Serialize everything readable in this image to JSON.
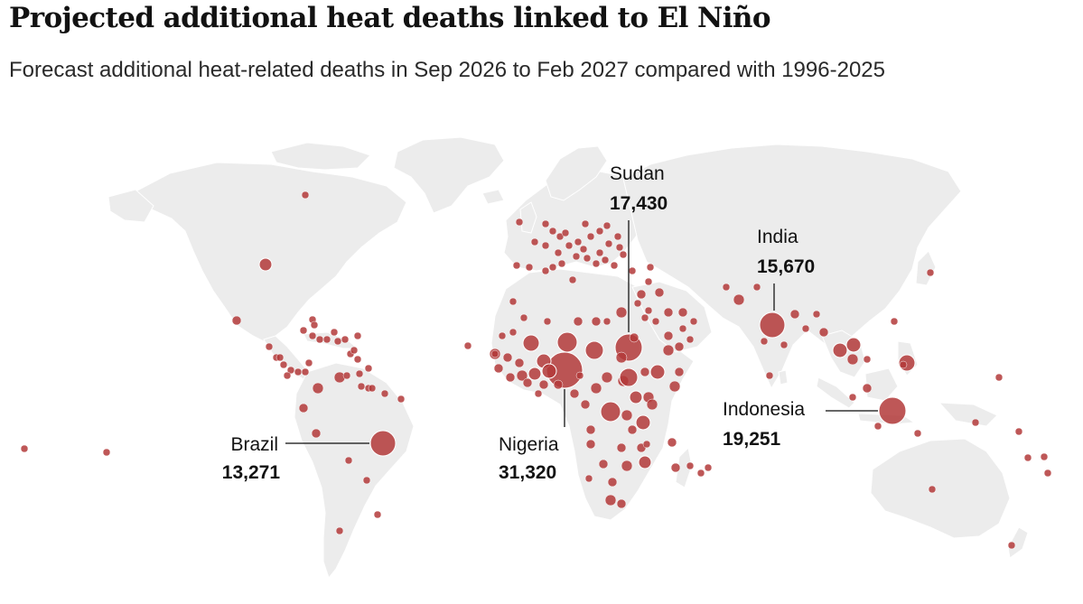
{
  "title": "Projected additional heat deaths linked to El Niño",
  "subtitle": "Forecast additional heat-related deaths in Sep 2026 to Feb 2027 compared with 1996-2025",
  "colors": {
    "land": "#ececec",
    "bubble": "#b33a3a",
    "leader": "#333333",
    "text": "#121212"
  },
  "callouts": [
    {
      "id": "nigeria",
      "country": "Nigeria",
      "value": "31,320"
    },
    {
      "id": "indonesia",
      "country": "Indonesia",
      "value": "19,251"
    },
    {
      "id": "sudan",
      "country": "Sudan",
      "value": "17,430"
    },
    {
      "id": "india",
      "country": "India",
      "value": "15,670"
    },
    {
      "id": "brazil",
      "country": "Brazil",
      "value": "13,271"
    }
  ]
}
